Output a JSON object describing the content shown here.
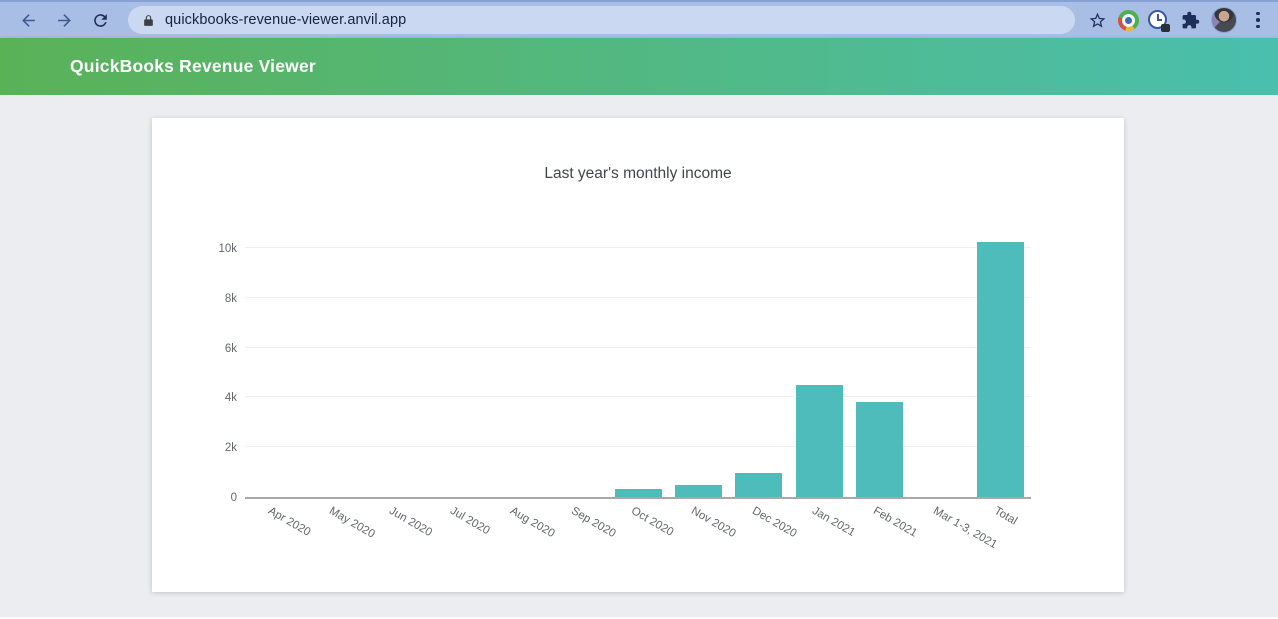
{
  "browser": {
    "url": "quickbooks-revenue-viewer.anvil.app"
  },
  "header": {
    "title": "QuickBooks Revenue Viewer"
  },
  "colors": {
    "header_gradient_left": "#5ab257",
    "header_gradient_right": "#4abfae",
    "bar_color": "#4dbcba",
    "toolbar_background": "#a9bee4",
    "page_background": "#ebedf0"
  },
  "chart_data": {
    "type": "bar",
    "title": "Last year's monthly income",
    "categories": [
      "Apr 2020",
      "May 2020",
      "Jun 2020",
      "Jul 2020",
      "Aug 2020",
      "Sep 2020",
      "Oct 2020",
      "Nov 2020",
      "Dec 2020",
      "Jan 2021",
      "Feb 2021",
      "Mar 1-3, 2021",
      "Total"
    ],
    "values": [
      0,
      0,
      0,
      0,
      0,
      0,
      320,
      480,
      950,
      4500,
      3800,
      0,
      10250
    ],
    "xlabel": "",
    "ylabel": "",
    "ytick_labels": [
      "0",
      "2k",
      "4k",
      "6k",
      "8k",
      "10k"
    ],
    "ytick_values": [
      0,
      2000,
      4000,
      6000,
      8000,
      10000
    ],
    "ylim": [
      0,
      10250
    ],
    "grid": true,
    "legend": null,
    "bar_color": "#4dbcba"
  }
}
